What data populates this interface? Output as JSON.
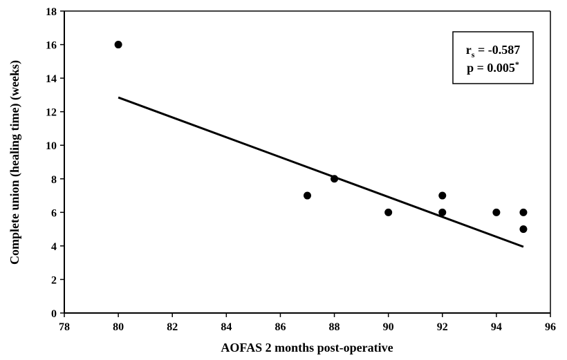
{
  "chart_data": {
    "type": "scatter",
    "xlabel": "AOFAS 2 months post-operative",
    "ylabel": "Complete union (healing time) (weeks)",
    "xlim": [
      78,
      96
    ],
    "ylim": [
      0,
      18
    ],
    "xticks": [
      "78",
      "80",
      "82",
      "84",
      "86",
      "88",
      "90",
      "92",
      "94",
      "96"
    ],
    "yticks": [
      "0",
      "2",
      "4",
      "6",
      "8",
      "10",
      "12",
      "14",
      "16",
      "18"
    ],
    "points": [
      {
        "x": 80,
        "y": 16
      },
      {
        "x": 87,
        "y": 7
      },
      {
        "x": 88,
        "y": 8
      },
      {
        "x": 90,
        "y": 6
      },
      {
        "x": 92,
        "y": 7
      },
      {
        "x": 92,
        "y": 6
      },
      {
        "x": 94,
        "y": 6
      },
      {
        "x": 95,
        "y": 6
      },
      {
        "x": 95,
        "y": 5
      }
    ],
    "trendline": {
      "x": [
        80,
        95
      ],
      "y": [
        12.85,
        3.95
      ]
    },
    "annotation": {
      "rs_prefix": "r",
      "rs_subscript": "s",
      "rs_value": " = -0.587",
      "p_text": "p = 0.005",
      "p_superscript": "*"
    },
    "grid": false,
    "marker_color": "#000000"
  }
}
